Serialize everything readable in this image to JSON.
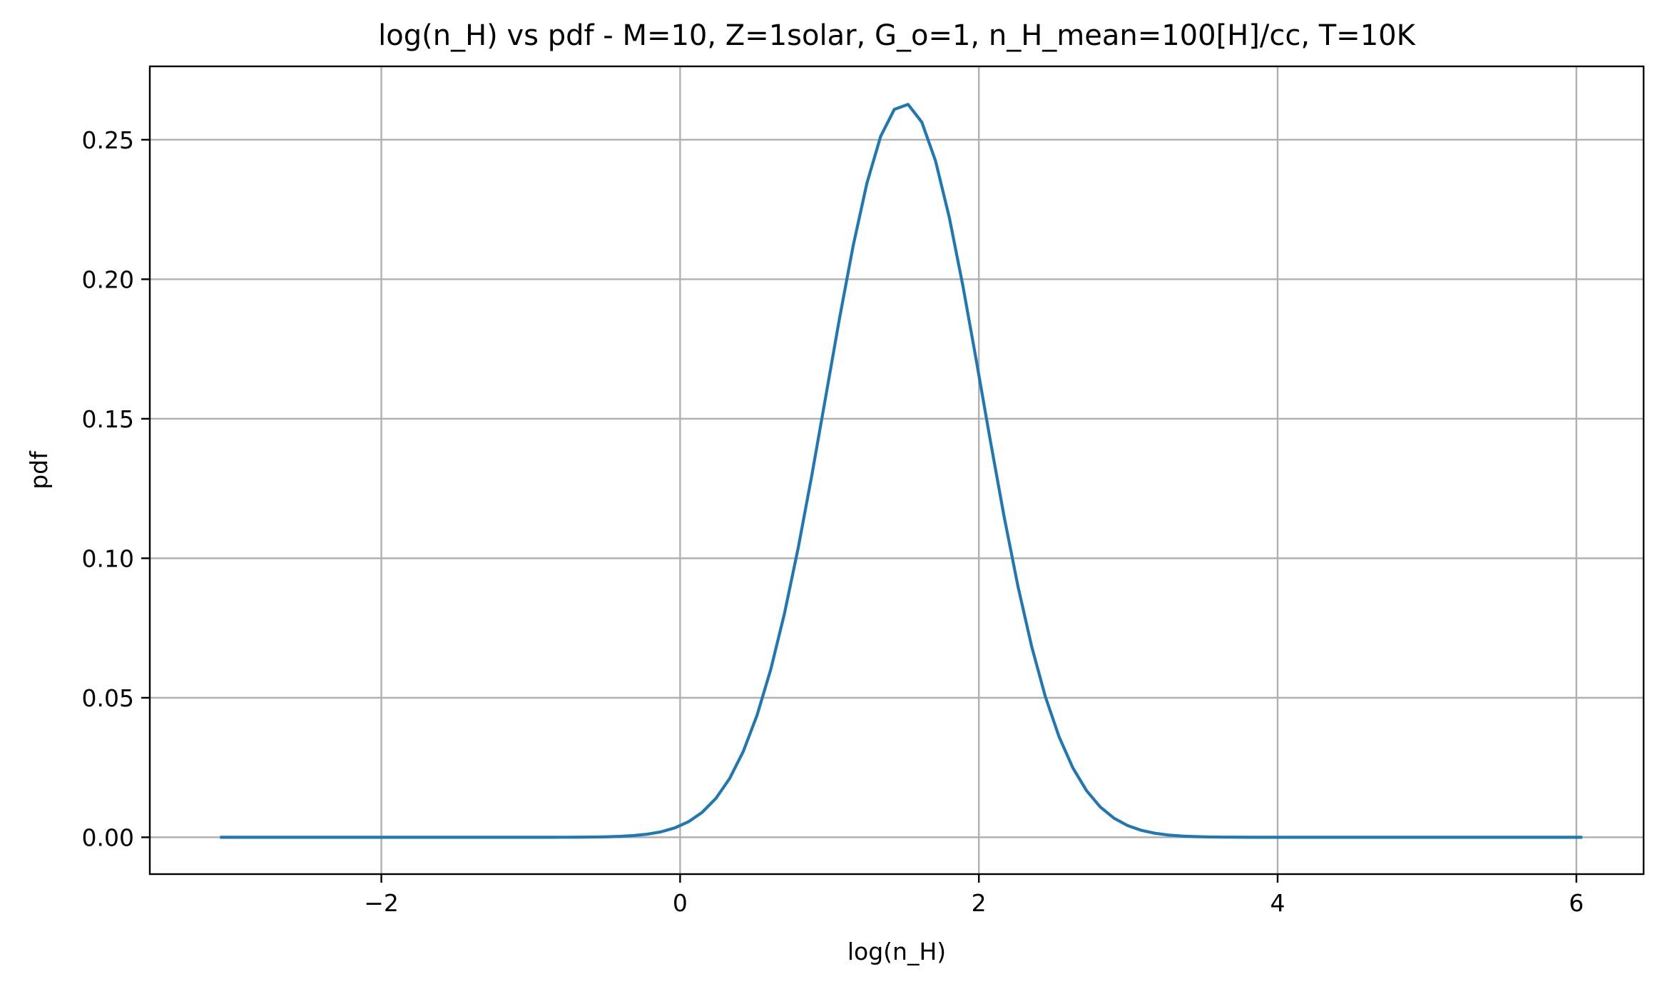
{
  "chart_data": {
    "type": "line",
    "title": "log(n_H) vs pdf - M=10, Z=1solar, G_o=1, n_H_mean=100[H]/cc, T=10K",
    "xlabel": "log(n_H)",
    "ylabel": "pdf",
    "xlim": [
      -3.55,
      6.45
    ],
    "ylim": [
      -0.0132,
      0.2763
    ],
    "xticks": [
      -2,
      0,
      2,
      4,
      6
    ],
    "xtick_labels": [
      "−2",
      "0",
      "2",
      "4",
      "6"
    ],
    "yticks": [
      0.0,
      0.05,
      0.1,
      0.15,
      0.2,
      0.25
    ],
    "ytick_labels": [
      "0.00",
      "0.05",
      "0.10",
      "0.15",
      "0.20",
      "0.25"
    ],
    "grid": true,
    "legend": "none",
    "series": [
      {
        "color": "#1f77b4",
        "distribution": {
          "kind": "gaussian",
          "mean": 1.5,
          "std": 0.52,
          "peak": 0.263
        },
        "x_range": [
          -3.07,
          6.03
        ],
        "n_points": 100
      }
    ]
  }
}
